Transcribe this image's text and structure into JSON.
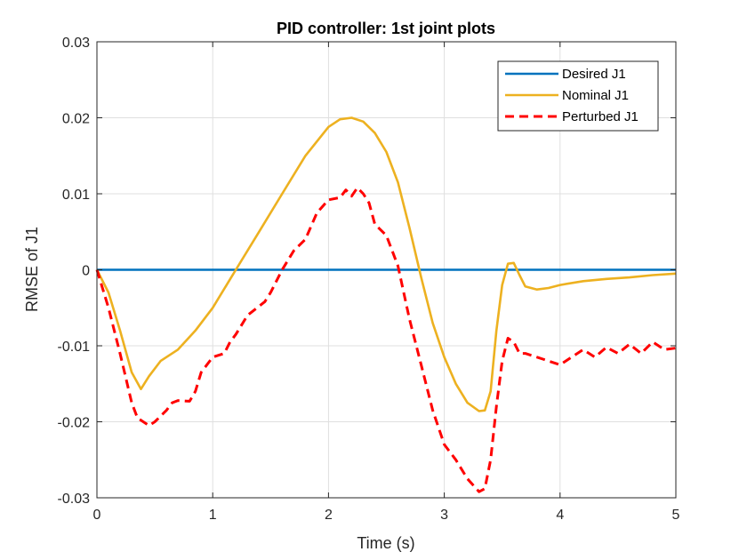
{
  "chart_data": {
    "type": "line",
    "title": "PID controller: 1st joint plots",
    "xlabel": "Time (s)",
    "ylabel": "RMSE of J1",
    "xlim": [
      0,
      5
    ],
    "ylim": [
      -0.03,
      0.03
    ],
    "x_ticks": [
      0,
      1,
      2,
      3,
      4,
      5
    ],
    "x_tick_labels": [
      "0",
      "1",
      "2",
      "3",
      "4",
      "5"
    ],
    "y_ticks": [
      -0.03,
      -0.02,
      -0.01,
      0,
      0.01,
      0.02,
      0.03
    ],
    "y_tick_labels": [
      "-0.03",
      "-0.02",
      "-0.01",
      "0",
      "0.01",
      "0.02",
      "0.03"
    ],
    "grid": true,
    "legend_position": "top-right",
    "series": [
      {
        "name": "Desired J1",
        "color": "#0072BD",
        "style": "solid",
        "x": [
          0,
          5
        ],
        "y": [
          0,
          0
        ]
      },
      {
        "name": "Nominal J1",
        "color": "#EDB120",
        "style": "solid",
        "x": [
          0,
          0.1,
          0.2,
          0.3,
          0.38,
          0.45,
          0.55,
          0.7,
          0.85,
          1.0,
          1.2,
          1.4,
          1.6,
          1.8,
          2.0,
          2.1,
          2.2,
          2.3,
          2.4,
          2.5,
          2.6,
          2.7,
          2.8,
          2.9,
          3.0,
          3.1,
          3.2,
          3.3,
          3.35,
          3.4,
          3.45,
          3.5,
          3.55,
          3.6,
          3.65,
          3.7,
          3.8,
          3.9,
          4.0,
          4.2,
          4.4,
          4.6,
          4.8,
          5.0
        ],
        "y": [
          0,
          -0.003,
          -0.008,
          -0.0135,
          -0.0157,
          -0.014,
          -0.012,
          -0.0105,
          -0.008,
          -0.005,
          0.0,
          0.005,
          0.01,
          0.015,
          0.0188,
          0.0198,
          0.02,
          0.0195,
          0.018,
          0.0155,
          0.0115,
          0.0055,
          -0.001,
          -0.007,
          -0.0115,
          -0.015,
          -0.0175,
          -0.0186,
          -0.0185,
          -0.016,
          -0.008,
          -0.002,
          0.0008,
          0.0009,
          -0.0007,
          -0.0022,
          -0.0026,
          -0.0024,
          -0.002,
          -0.0015,
          -0.0012,
          -0.001,
          -0.0007,
          -0.0005
        ]
      },
      {
        "name": "Perturbed J1",
        "color": "#FF0000",
        "style": "dashed",
        "x": [
          0,
          0.1,
          0.2,
          0.3,
          0.35,
          0.45,
          0.5,
          0.6,
          0.65,
          0.7,
          0.8,
          0.85,
          0.9,
          1.0,
          1.1,
          1.15,
          1.2,
          1.3,
          1.4,
          1.45,
          1.5,
          1.6,
          1.7,
          1.8,
          1.9,
          2.0,
          2.1,
          2.15,
          2.2,
          2.25,
          2.3,
          2.35,
          2.4,
          2.5,
          2.6,
          2.7,
          2.8,
          2.9,
          3.0,
          3.1,
          3.2,
          3.3,
          3.35,
          3.4,
          3.45,
          3.5,
          3.55,
          3.6,
          3.65,
          3.7,
          3.8,
          3.9,
          4.0,
          4.1,
          4.2,
          4.3,
          4.4,
          4.5,
          4.6,
          4.7,
          4.8,
          4.9,
          5.0
        ],
        "y": [
          0,
          -0.005,
          -0.011,
          -0.0175,
          -0.0195,
          -0.0205,
          -0.02,
          -0.0185,
          -0.0175,
          -0.0172,
          -0.0173,
          -0.016,
          -0.0135,
          -0.0115,
          -0.011,
          -0.0095,
          -0.0085,
          -0.006,
          -0.0048,
          -0.0042,
          -0.003,
          0.0,
          0.0025,
          0.004,
          0.0075,
          0.0092,
          0.0095,
          0.0105,
          0.0097,
          0.0108,
          0.01,
          0.0088,
          0.006,
          0.0045,
          0.0005,
          -0.0065,
          -0.0125,
          -0.0185,
          -0.023,
          -0.025,
          -0.0275,
          -0.0292,
          -0.0288,
          -0.025,
          -0.018,
          -0.012,
          -0.009,
          -0.0095,
          -0.011,
          -0.011,
          -0.0115,
          -0.012,
          -0.0125,
          -0.0115,
          -0.0105,
          -0.0115,
          -0.0102,
          -0.011,
          -0.0098,
          -0.011,
          -0.0095,
          -0.0105,
          -0.0103
        ]
      }
    ]
  }
}
